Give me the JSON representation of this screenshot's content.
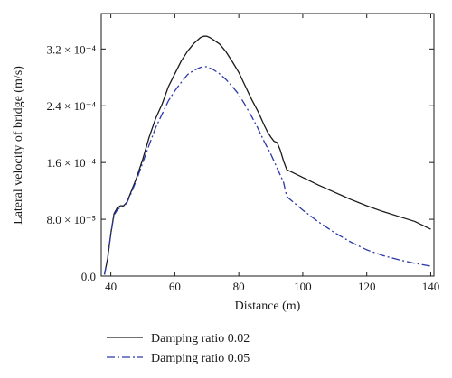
{
  "chart_data": {
    "type": "line",
    "xlabel": "Distance (m)",
    "ylabel": "Lateral velocity of bridge (m/s)",
    "xlim": [
      37,
      141
    ],
    "ylim": [
      0,
      0.00037
    ],
    "x_ticks": [
      40,
      60,
      80,
      100,
      120,
      140
    ],
    "x_tick_labels": [
      "40",
      "60",
      "80",
      "100",
      "120",
      "140"
    ],
    "y_ticks": [
      0,
      8e-05,
      0.00016,
      0.00024,
      0.00032
    ],
    "y_tick_labels": [
      "0.0",
      "8.0 × 10⁻⁵",
      "1.6 × 10⁻⁴",
      "2.4 × 10⁻⁴",
      "3.2 × 10⁻⁴"
    ],
    "grid": false,
    "legend_position": "bottom",
    "series": [
      {
        "name": "Damping ratio 0.02",
        "color": "#1a1a1a",
        "dash": "solid",
        "x": [
          38,
          39,
          40,
          41,
          42,
          43,
          44,
          45,
          46,
          48,
          50,
          52,
          54,
          56,
          58,
          60,
          62,
          64,
          66,
          68,
          69,
          70,
          71,
          72,
          74,
          76,
          78,
          80,
          82,
          84,
          86,
          88,
          89,
          90,
          91,
          92,
          93,
          94,
          95,
          100,
          105,
          110,
          115,
          120,
          125,
          130,
          135,
          140
        ],
        "y": [
          2e-06,
          2.5e-05,
          6e-05,
          8.8e-05,
          9.6e-05,
          9.9e-05,
          9.9e-05,
          0.000104,
          0.000115,
          0.000138,
          0.000165,
          0.000196,
          0.000222,
          0.000242,
          0.000267,
          0.000285,
          0.000303,
          0.000317,
          0.000328,
          0.000336,
          0.000338,
          0.000338,
          0.000336,
          0.000333,
          0.000327,
          0.000316,
          0.000302,
          0.000287,
          0.000268,
          0.000249,
          0.000232,
          0.000212,
          0.000203,
          0.000196,
          0.00019,
          0.000188,
          0.000177,
          0.000162,
          0.00015,
          0.000139,
          0.000128,
          0.000118,
          0.000108,
          9.9e-05,
          9.1e-05,
          8.4e-05,
          7.7e-05,
          6.6e-05
        ]
      },
      {
        "name": "Damping ratio 0.05",
        "color": "#2b3aa8",
        "dash": "dashdot",
        "x": [
          38,
          39,
          40,
          41,
          42,
          43,
          44,
          45,
          46,
          48,
          50,
          52,
          54,
          56,
          58,
          60,
          62,
          64,
          66,
          68,
          69,
          70,
          71,
          72,
          74,
          76,
          78,
          80,
          82,
          84,
          86,
          88,
          90,
          92,
          94,
          95,
          100,
          105,
          110,
          115,
          120,
          125,
          130,
          135,
          140
        ],
        "y": [
          2e-06,
          2.5e-05,
          6e-05,
          8.6e-05,
          9.3e-05,
          9.7e-05,
          9.8e-05,
          0.000103,
          0.000113,
          0.000135,
          0.00016,
          0.000185,
          0.000209,
          0.000228,
          0.000247,
          0.000261,
          0.000273,
          0.000284,
          0.00029,
          0.000294,
          0.000295,
          0.000295,
          0.000293,
          0.000291,
          0.000285,
          0.000277,
          0.000267,
          0.000256,
          0.000241,
          0.000225,
          0.000208,
          0.000189,
          0.000172,
          0.000152,
          0.000132,
          0.000112,
          9.3e-05,
          7.6e-05,
          6.1e-05,
          4.8e-05,
          3.7e-05,
          2.9e-05,
          2.3e-05,
          1.8e-05,
          1.4e-05
        ]
      }
    ]
  }
}
